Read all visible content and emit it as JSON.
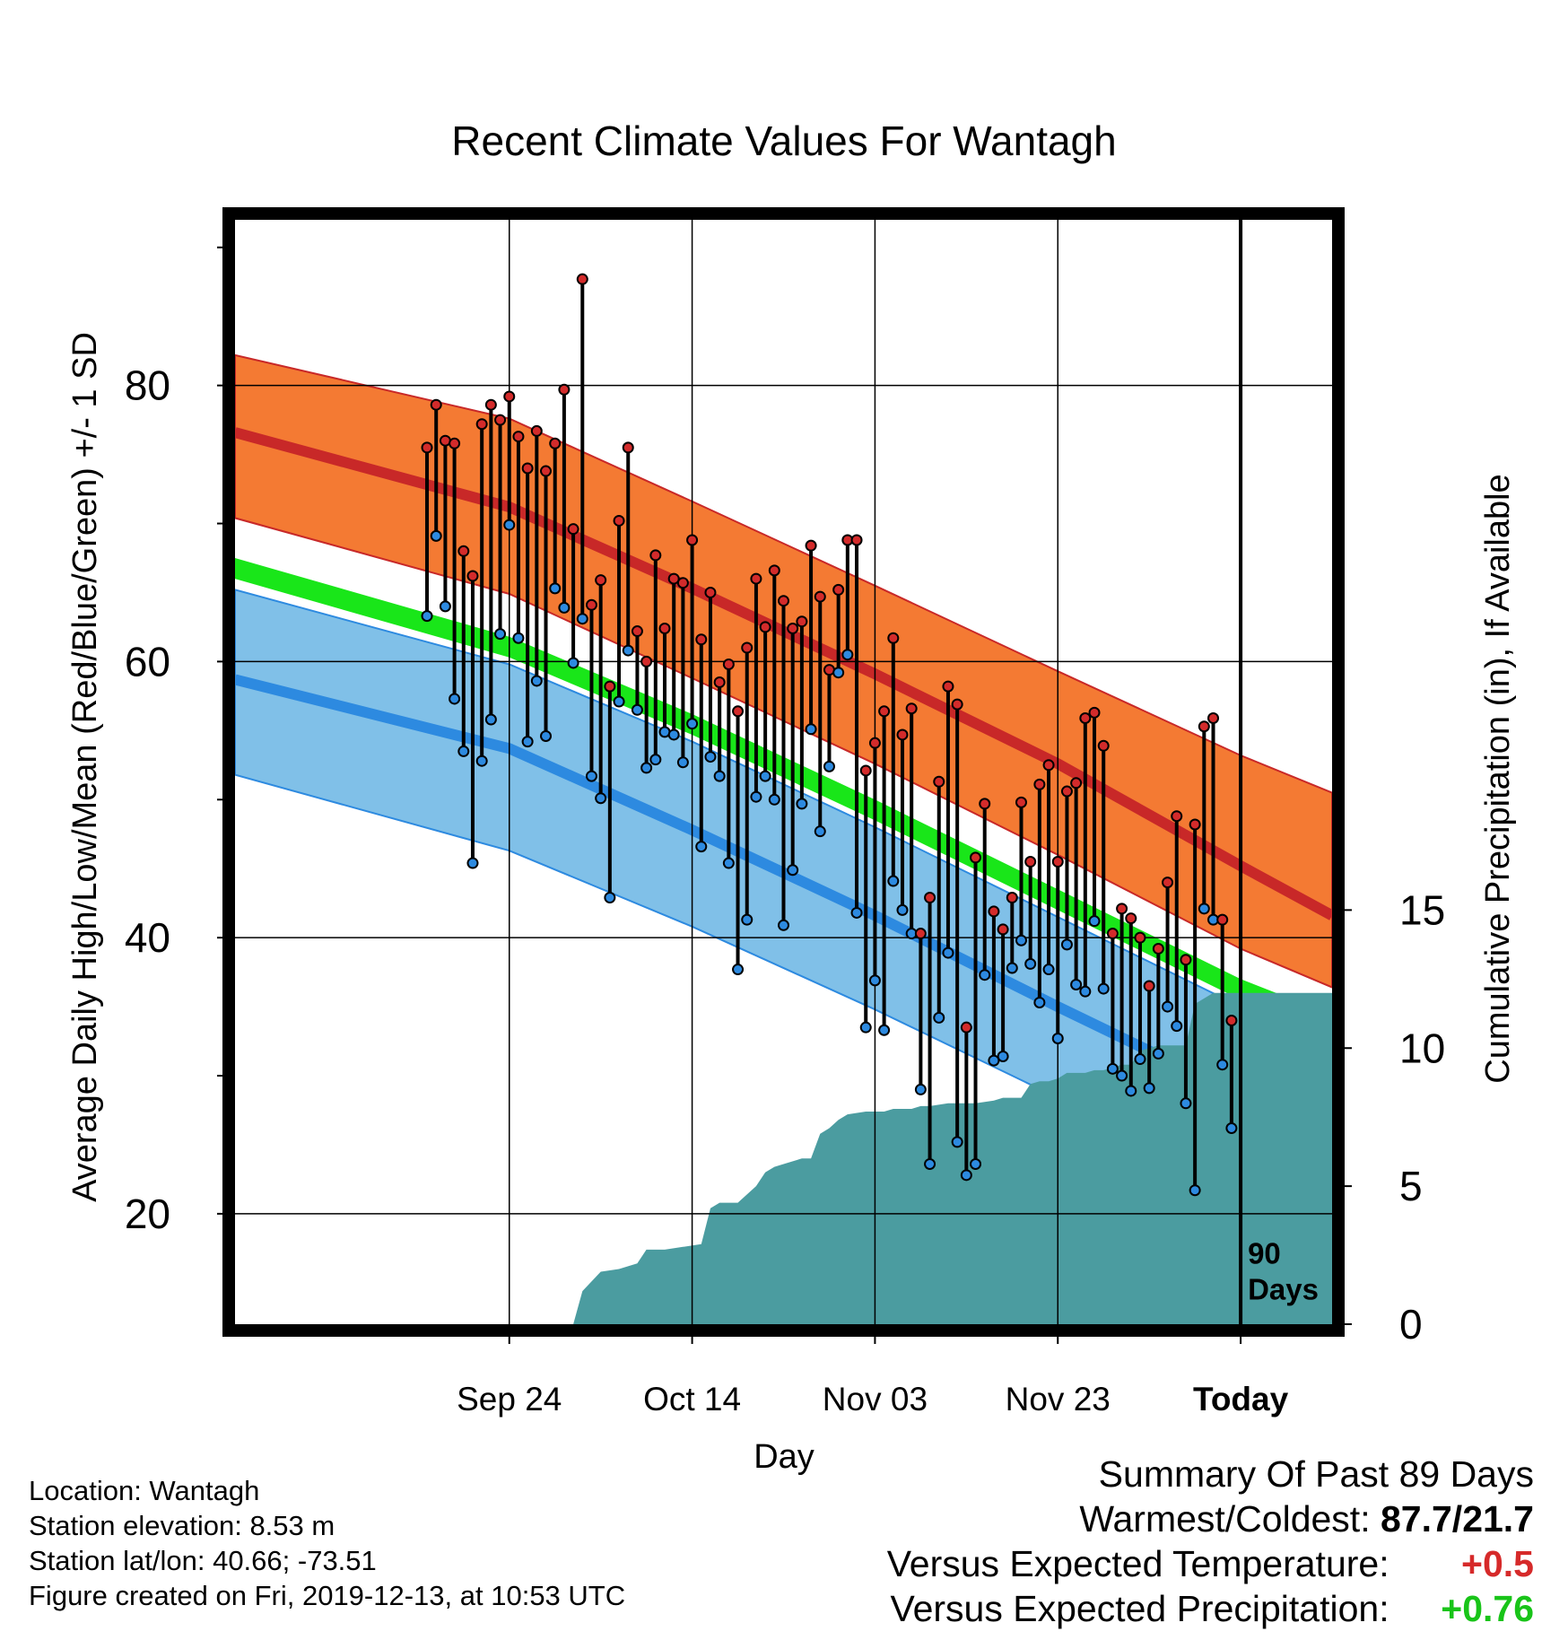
{
  "chart_data": {
    "type": "line",
    "title": "Recent Climate Values For Wantagh",
    "xlabel": "Day",
    "ylabel": "Average Daily High/Low/Mean (Red/Blue/Green) +/- 1 SD",
    "y2label": "Cumulative Precipitation (in), If Available",
    "x_range_days": [
      -110,
      10
    ],
    "ylim": [
      12,
      92
    ],
    "y2lim": [
      0,
      40
    ],
    "x_ticks": [
      {
        "label": "Sep 24",
        "day": -80
      },
      {
        "label": "Oct 14",
        "day": -60
      },
      {
        "label": "Nov 03",
        "day": -40
      },
      {
        "label": "Nov 23",
        "day": -20
      },
      {
        "label": "Today",
        "day": 0
      }
    ],
    "y_ticks": [
      20,
      40,
      60,
      80
    ],
    "y2_ticks": [
      0,
      5,
      10,
      15
    ],
    "today_label": [
      "90",
      "Days"
    ],
    "grid": true,
    "colors": {
      "high_band": "#f47a33",
      "high_mean": "#c82828",
      "low_band": "#80c0e8",
      "low_mean": "#2d8ae0",
      "mean": "#19e619",
      "precip": "#4b9ca0",
      "high_marker": "#d32b2b",
      "low_marker": "#2d8ae0"
    },
    "normals": {
      "days": [
        -110,
        -80,
        -60,
        -40,
        -20,
        0,
        10
      ],
      "high_upper": [
        82.2,
        77.6,
        71.6,
        65.5,
        59.3,
        53.2,
        50.5
      ],
      "high_mean": [
        76.6,
        71.2,
        65.3,
        59.1,
        52.6,
        45.2,
        41.6
      ],
      "high_lower": [
        70.4,
        64.9,
        58.8,
        52.6,
        46.0,
        39.2,
        36.4
      ],
      "mean_upper": [
        67.5,
        61.8,
        56.2,
        50.0,
        43.5,
        37.0,
        34.4
      ],
      "mean_lower": [
        66.0,
        60.3,
        54.7,
        48.5,
        42.0,
        35.5,
        32.9
      ],
      "low_upper": [
        65.2,
        59.8,
        54.2,
        48.0,
        41.5,
        35.0,
        32.3
      ],
      "low_mean": [
        58.7,
        53.7,
        47.8,
        41.6,
        35.0,
        28.6,
        25.8
      ],
      "low_lower": [
        51.8,
        46.3,
        40.8,
        34.8,
        28.4,
        22.3,
        19.6
      ]
    },
    "series": [
      {
        "name": "High",
        "start_day": -89,
        "values": [
          75.5,
          78.6,
          76.0,
          75.8,
          68.0,
          66.2,
          77.2,
          78.6,
          77.5,
          79.2,
          76.3,
          74.0,
          76.7,
          73.8,
          75.8,
          79.7,
          69.6,
          87.7,
          64.1,
          65.9,
          58.2,
          70.2,
          75.5,
          62.2,
          60.0,
          67.7,
          62.4,
          66.0,
          65.7,
          68.8,
          61.6,
          65.0,
          58.5,
          59.8,
          56.4,
          61.0,
          66.0,
          62.5,
          66.6,
          64.4,
          62.4,
          62.9,
          68.4,
          64.7,
          59.4,
          65.2,
          68.8,
          68.8,
          52.1,
          54.1,
          56.4,
          61.7,
          54.7,
          56.6,
          40.3,
          42.9,
          51.3,
          58.2,
          56.9,
          33.5,
          45.8,
          49.7,
          41.9,
          40.6,
          42.9,
          49.8,
          45.5,
          51.1,
          52.5,
          45.5,
          50.6,
          51.2,
          55.9,
          56.3,
          53.9,
          40.3,
          42.1,
          41.4,
          40.0,
          36.5,
          39.2,
          44.0,
          48.8,
          38.4,
          48.2,
          55.3,
          55.9,
          41.3,
          34.0
        ]
      },
      {
        "name": "Low",
        "start_day": -89,
        "values": [
          63.3,
          69.1,
          64.0,
          57.3,
          53.5,
          45.4,
          52.8,
          55.8,
          62.0,
          69.9,
          61.7,
          54.2,
          58.6,
          54.6,
          65.3,
          63.9,
          59.9,
          63.1,
          51.7,
          50.1,
          42.9,
          57.1,
          60.8,
          56.5,
          52.3,
          52.9,
          54.9,
          54.7,
          52.7,
          55.5,
          46.6,
          53.1,
          51.7,
          45.4,
          37.7,
          41.3,
          50.2,
          51.7,
          50.0,
          40.9,
          44.9,
          49.7,
          55.1,
          47.7,
          52.4,
          59.2,
          60.5,
          41.8,
          33.5,
          36.9,
          33.3,
          44.1,
          42.0,
          40.3,
          29.0,
          23.6,
          34.2,
          38.9,
          25.2,
          22.8,
          23.6,
          37.3,
          31.1,
          31.4,
          37.8,
          39.8,
          38.1,
          35.3,
          37.7,
          32.7,
          39.5,
          36.6,
          36.1,
          41.2,
          36.3,
          30.5,
          30.0,
          28.9,
          31.2,
          29.1,
          31.6,
          35.0,
          33.6,
          28.0,
          21.7,
          42.1,
          41.3,
          30.8,
          26.2
        ]
      },
      {
        "name": "Cumulative Precipitation",
        "axis": "y2",
        "days": [
          -73,
          -72,
          -70,
          -68,
          -66,
          -65,
          -63,
          -61,
          -59,
          -58,
          -57,
          -55,
          -53,
          -52,
          -51,
          -50,
          -48,
          -47,
          -46,
          -45,
          -44,
          -43,
          -41,
          -40,
          -39,
          -38,
          -37,
          -36,
          -35,
          -34,
          -32,
          -31,
          -30,
          -29,
          -27,
          -26,
          -24,
          -23,
          -22,
          -21,
          -20,
          -19,
          -18,
          -17,
          -16,
          -15,
          -14,
          -13,
          -12,
          -11,
          -10,
          -9,
          -8,
          -7,
          -6,
          -5,
          -4,
          -3,
          -2,
          -1,
          0,
          10
        ],
        "values": [
          0.0,
          1.2,
          1.9,
          2.0,
          2.2,
          2.7,
          2.7,
          2.8,
          2.9,
          4.2,
          4.4,
          4.4,
          5.0,
          5.5,
          5.7,
          5.8,
          6.0,
          6.0,
          6.9,
          7.1,
          7.4,
          7.6,
          7.7,
          7.7,
          7.7,
          7.8,
          7.8,
          7.8,
          7.9,
          7.9,
          8.0,
          8.0,
          8.0,
          8.0,
          8.1,
          8.2,
          8.2,
          8.7,
          8.8,
          8.8,
          8.9,
          9.1,
          9.1,
          9.1,
          9.2,
          9.2,
          9.3,
          9.4,
          9.4,
          9.9,
          10.0,
          10.1,
          10.1,
          10.1,
          10.1,
          11.6,
          11.8,
          12.0,
          12.0,
          12.0,
          12.0,
          12.0
        ]
      }
    ]
  },
  "info": {
    "location": "Location: Wantagh",
    "elevation": "Station elevation: 8.53 m",
    "latlon": "Station lat/lon: 40.66; -73.51",
    "created": "Figure created on Fri, 2019-12-13, at 10:53 UTC"
  },
  "summary": {
    "heading": "Summary Of Past 89 Days",
    "warm_label": "Warmest/Coldest:",
    "warm_value": "87.7/21.7",
    "temp_label": "Versus Expected Temperature:",
    "temp_value": "+0.5",
    "precip_label": "Versus Expected Precipitation:",
    "precip_value": "+0.76"
  }
}
